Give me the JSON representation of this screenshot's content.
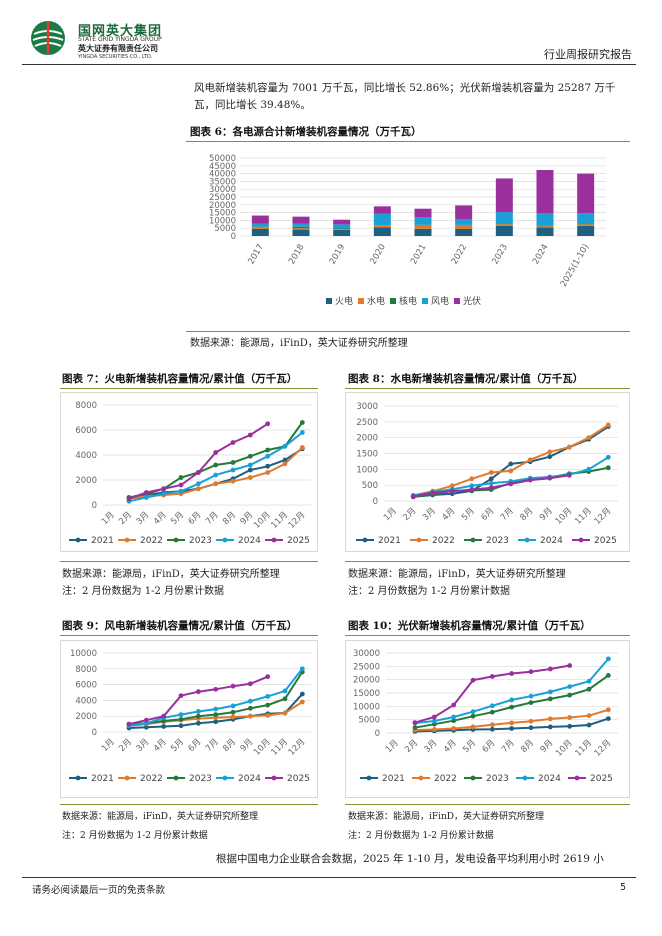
{
  "header": {
    "company_cn": "国网英大集团",
    "company_en": "STATE GRID YINGDA GROUP",
    "securities_cn": "英大证券有限责任公司",
    "securities_en": "YINGDA SECURITIES CO., LTD.",
    "report_type": "行业周报研究报告"
  },
  "intro_text": {
    "line1": "风电新增装机容量为 7001 万千瓦，同比增长 52.86%；光伏新增装机容量为 25287 万千",
    "line2": "瓦，同比增长 39.48%。"
  },
  "figure6": {
    "title": "图表 6：各电源合计新增装机容量情况（万千瓦）",
    "source": "数据来源：能源局，iFinD，英大证券研究所整理"
  },
  "figure7": {
    "title": "图表 7：火电新增装机容量情况/累计值（万千瓦）",
    "source": "数据来源：能源局，iFinD，英大证券研究所整理",
    "note": "注：2 月份数据为 1-2 月份累计数据"
  },
  "figure8": {
    "title": "图表 8：水电新增装机容量情况/累计值（万千瓦）",
    "source": "数据来源：能源局，iFinD，英大证券研究所整理",
    "note": "注：2 月份数据为 1-2 月份累计数据"
  },
  "figure9": {
    "title": "图表 9：风电新增装机容量情况/累计值（万千瓦）",
    "source": "数据来源：能源局，iFinD，英大证券研究所整理",
    "note": "注：2 月份数据为 1-2 月份累计数据"
  },
  "figure10": {
    "title": "图表 10：光伏新增装机容量情况/累计值（万千瓦）",
    "source": "数据来源：能源局，iFinD，英大证券研究所整理",
    "note": "注：2 月份数据为 1-2 月份累计数据"
  },
  "closing_text": "根据中国电力企业联合会数据，2025 年 1-10 月，发电设备平均利用小时 2619 小",
  "footer": {
    "disclaimer": "请务必阅读最后一页的免责条款",
    "page": "5"
  },
  "colors": {
    "s2021": "#1f5f7f",
    "s2022": "#e07a2e",
    "s2023": "#237a3a",
    "s2024": "#1a9fd6",
    "s2025": "#9b2f9e",
    "thermal": "#1f5f7f",
    "hydro": "#e07a2e",
    "nuclear": "#237a3a",
    "wind": "#1a9fd6",
    "solar": "#9b2f9e"
  },
  "chart_data": [
    {
      "id": "fig6",
      "type": "bar",
      "stacked": true,
      "categories": [
        "2017",
        "2018",
        "2019",
        "2020",
        "2021",
        "2022",
        "2023",
        "2024",
        "2025(1-10)"
      ],
      "series": [
        {
          "name": "火电",
          "key": "thermal",
          "values": [
            4500,
            4100,
            4000,
            5600,
            4600,
            4500,
            6600,
            5400,
            6500
          ]
        },
        {
          "name": "水电",
          "key": "hydro",
          "values": [
            1300,
            900,
            450,
            1300,
            2300,
            2400,
            950,
            800,
            1000
          ]
        },
        {
          "name": "核电",
          "key": "nuclear",
          "values": [
            200,
            900,
            400,
            100,
            300,
            200,
            150,
            300,
            200
          ]
        },
        {
          "name": "风电",
          "key": "wind",
          "values": [
            1800,
            2100,
            2600,
            7200,
            4800,
            3800,
            7600,
            8000,
            7000
          ]
        },
        {
          "name": "光伏",
          "key": "solar",
          "values": [
            5300,
            4400,
            3000,
            4800,
            5500,
            8700,
            21600,
            27800,
            25300
          ]
        }
      ],
      "ylim": [
        0,
        50000
      ],
      "yticks": [
        0,
        5000,
        10000,
        15000,
        20000,
        25000,
        30000,
        35000,
        40000,
        45000,
        50000
      ],
      "legend_position": "bottom"
    },
    {
      "id": "fig7",
      "type": "line",
      "categories": [
        "1月",
        "2月",
        "3月",
        "4月",
        "5月",
        "6月",
        "7月",
        "8月",
        "9月",
        "10月",
        "11月",
        "12月"
      ],
      "series": [
        {
          "name": "2021",
          "key": "s2021",
          "values": [
            null,
            600,
            800,
            1000,
            1100,
            1300,
            1700,
            2100,
            2800,
            3100,
            3600,
            4500
          ]
        },
        {
          "name": "2022",
          "key": "s2022",
          "values": [
            null,
            500,
            700,
            800,
            900,
            1300,
            1700,
            1900,
            2200,
            2600,
            3300,
            4600
          ]
        },
        {
          "name": "2023",
          "key": "s2023",
          "values": [
            null,
            600,
            900,
            1300,
            2200,
            2600,
            3200,
            3400,
            3900,
            4400,
            4700,
            6600
          ]
        },
        {
          "name": "2024",
          "key": "s2024",
          "values": [
            null,
            300,
            600,
            900,
            1100,
            1700,
            2400,
            2800,
            3200,
            3900,
            4700,
            5800
          ]
        },
        {
          "name": "2025",
          "key": "s2025",
          "values": [
            null,
            500,
            1000,
            1300,
            1600,
            2600,
            4200,
            5000,
            5600,
            6500,
            null,
            null
          ]
        }
      ],
      "ylim": [
        0,
        8000
      ],
      "yticks": [
        0,
        2000,
        4000,
        6000,
        8000
      ],
      "legend_position": "bottom"
    },
    {
      "id": "fig8",
      "type": "line",
      "categories": [
        "1月",
        "2月",
        "3月",
        "4月",
        "5月",
        "6月",
        "7月",
        "8月",
        "9月",
        "10月",
        "11月",
        "12月"
      ],
      "series": [
        {
          "name": "2021",
          "key": "s2021",
          "values": [
            null,
            130,
            190,
            230,
            320,
            700,
            1170,
            1240,
            1400,
            1700,
            1950,
            2350
          ]
        },
        {
          "name": "2022",
          "key": "s2022",
          "values": [
            null,
            180,
            310,
            480,
            700,
            900,
            950,
            1300,
            1550,
            1700,
            2000,
            2400
          ]
        },
        {
          "name": "2023",
          "key": "s2023",
          "values": [
            null,
            140,
            200,
            320,
            330,
            360,
            570,
            700,
            740,
            860,
            930,
            1050
          ]
        },
        {
          "name": "2024",
          "key": "s2024",
          "values": [
            null,
            170,
            280,
            370,
            480,
            560,
            620,
            720,
            760,
            830,
            1000,
            1380
          ]
        },
        {
          "name": "2025",
          "key": "s2025",
          "values": [
            null,
            140,
            260,
            310,
            360,
            420,
            540,
            660,
            720,
            810,
            null,
            null
          ]
        }
      ],
      "ylim": [
        0,
        3000
      ],
      "yticks": [
        0,
        500,
        1000,
        1500,
        2000,
        2500,
        3000
      ],
      "legend_position": "bottom"
    },
    {
      "id": "fig9",
      "type": "line",
      "categories": [
        "1月",
        "2月",
        "3月",
        "4月",
        "5月",
        "6月",
        "7月",
        "8月",
        "9月",
        "10月",
        "11月",
        "12月"
      ],
      "series": [
        {
          "name": "2021",
          "key": "s2021",
          "values": [
            null,
            500,
            600,
            700,
            800,
            1100,
            1300,
            1600,
            2000,
            2300,
            2400,
            4800
          ]
        },
        {
          "name": "2022",
          "key": "s2022",
          "values": [
            null,
            800,
            1000,
            1300,
            1500,
            1700,
            1800,
            1900,
            2000,
            2100,
            2400,
            3800
          ]
        },
        {
          "name": "2023",
          "key": "s2023",
          "values": [
            null,
            1000,
            1100,
            1400,
            1600,
            2000,
            2200,
            2500,
            3000,
            3400,
            4200,
            7600
          ]
        },
        {
          "name": "2024",
          "key": "s2024",
          "values": [
            null,
            800,
            1100,
            1800,
            2200,
            2600,
            2900,
            3300,
            3900,
            4500,
            5200,
            8000
          ]
        },
        {
          "name": "2025",
          "key": "s2025",
          "values": [
            null,
            1000,
            1500,
            2000,
            4600,
            5100,
            5400,
            5800,
            6100,
            7000,
            null,
            null
          ]
        }
      ],
      "ylim": [
        0,
        10000
      ],
      "yticks": [
        0,
        2000,
        4000,
        6000,
        8000,
        10000
      ],
      "legend_position": "bottom"
    },
    {
      "id": "fig10",
      "type": "line",
      "categories": [
        "1月",
        "2月",
        "3月",
        "4月",
        "5月",
        "6月",
        "7月",
        "8月",
        "9月",
        "10月",
        "11月",
        "12月"
      ],
      "series": [
        {
          "name": "2021",
          "key": "s2021",
          "values": [
            null,
            600,
            800,
            1000,
            1300,
            1400,
            1700,
            2000,
            2300,
            2500,
            3000,
            5400
          ]
        },
        {
          "name": "2022",
          "key": "s2022",
          "values": [
            null,
            1100,
            1300,
            1700,
            2300,
            3100,
            3800,
            4400,
            5300,
            5800,
            6500,
            8700
          ]
        },
        {
          "name": "2023",
          "key": "s2023",
          "values": [
            null,
            2000,
            3300,
            4600,
            6300,
            7800,
            9700,
            11400,
            12800,
            14200,
            16400,
            21600
          ]
        },
        {
          "name": "2024",
          "key": "s2024",
          "values": [
            null,
            3700,
            4500,
            6000,
            8000,
            10200,
            12400,
            13800,
            15400,
            17400,
            19400,
            27800
          ]
        },
        {
          "name": "2025",
          "key": "s2025",
          "values": [
            null,
            3900,
            6000,
            10500,
            19800,
            21200,
            22300,
            23000,
            24000,
            25300,
            null,
            null
          ]
        }
      ],
      "ylim": [
        0,
        30000
      ],
      "yticks": [
        0,
        5000,
        10000,
        15000,
        20000,
        25000,
        30000
      ],
      "legend_position": "bottom"
    }
  ]
}
